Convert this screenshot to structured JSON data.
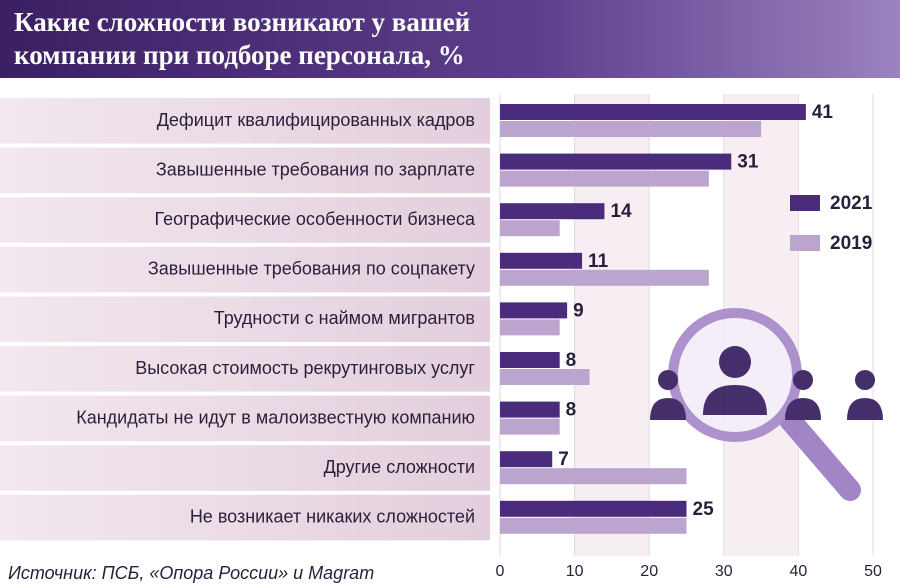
{
  "chart_data": {
    "type": "bar",
    "orientation": "horizontal",
    "title": "Какие сложности возникают у вашей компании при подборе персонала, %",
    "categories": [
      "Дефицит квалифицированных кадров",
      "Завышенные требования по зарплате",
      "Географические особенности бизнеса",
      "Завышенные требования по соцпакету",
      "Трудности с наймом мигрантов",
      "Высокая стоимость рекрутинговых услуг",
      "Кандидаты не идут в малоизвестную компанию",
      "Другие сложности",
      "Не возникает никаких сложностей"
    ],
    "series": [
      {
        "name": "2021",
        "color": "#4b2c7c",
        "values": [
          41,
          31,
          14,
          11,
          9,
          8,
          8,
          7,
          25
        ]
      },
      {
        "name": "2019",
        "color": "#bba5cf",
        "values": [
          35,
          28,
          8,
          28,
          8,
          12,
          8,
          25,
          25
        ]
      }
    ],
    "xlim": [
      0,
      50
    ],
    "xticks": [
      0,
      10,
      20,
      30,
      40,
      50
    ],
    "source": "Источник: ПСБ, «Опора России» и Magram"
  }
}
